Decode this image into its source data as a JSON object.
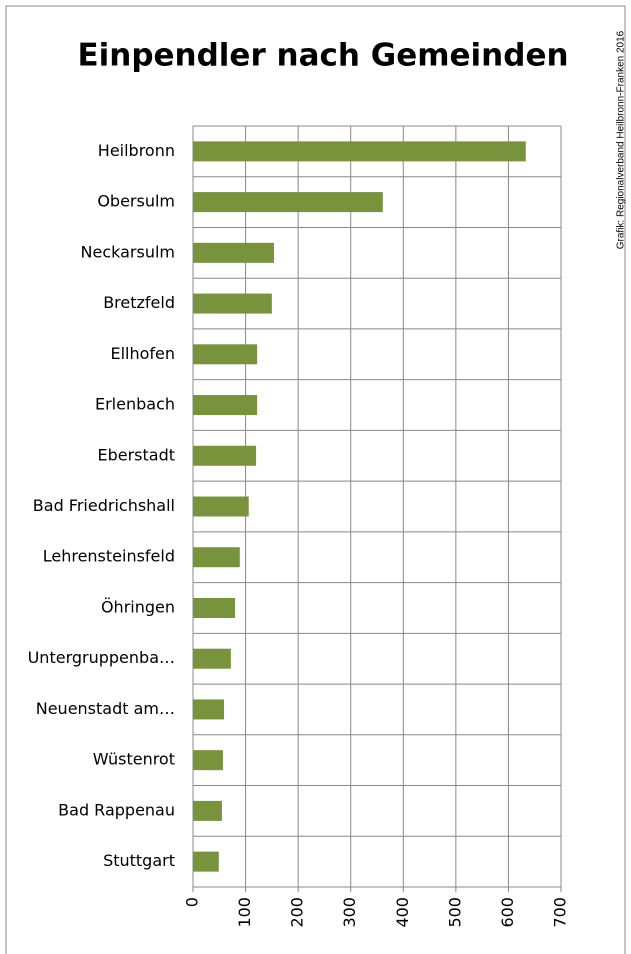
{
  "chart_data": {
    "type": "barh",
    "title": "Einpendler nach Gemeinden",
    "source": "Grafik: Regionalverband Heilbronn-Franken 2016",
    "categories": [
      "Heilbronn",
      "Obersulm",
      "Neckarsulm",
      "Bretzfeld",
      "Ellhofen",
      "Erlenbach",
      "Eberstadt",
      "Bad Friedrichshall",
      "Lehrensteinsfeld",
      "Öhringen",
      "Untergruppenba…",
      "Neuenstadt am…",
      "Wüstenrot",
      "Bad Rappenau",
      "Stuttgart"
    ],
    "values": [
      633,
      361,
      154,
      150,
      122,
      122,
      120,
      106,
      89,
      80,
      72,
      59,
      57,
      55,
      49
    ],
    "color": "#77933c",
    "xlim": [
      0,
      700
    ],
    "xticks": [
      0,
      100,
      200,
      300,
      400,
      500,
      600,
      700
    ],
    "grid": true
  }
}
